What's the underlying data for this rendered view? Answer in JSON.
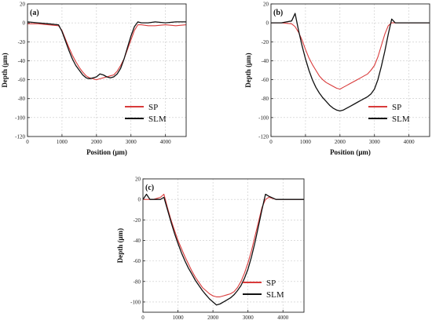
{
  "chart_data": [
    {
      "type": "line",
      "panel_label": "(a)",
      "xlabel": "Position (μm)",
      "ylabel": "Depth (μm)",
      "xlim": [
        0,
        4600
      ],
      "ylim": [
        -120,
        20
      ],
      "xticks": [
        0,
        1000,
        2000,
        3000,
        4000
      ],
      "yticks": [
        -120,
        -100,
        -80,
        -60,
        -40,
        -20,
        0,
        20
      ],
      "grid": true,
      "legend_position": "bottom-right",
      "series": [
        {
          "name": "SP",
          "color": "#d93b3b",
          "x": [
            0,
            300,
            600,
            900,
            1000,
            1100,
            1200,
            1300,
            1400,
            1500,
            1600,
            1700,
            1800,
            1900,
            2000,
            2100,
            2200,
            2300,
            2400,
            2500,
            2600,
            2700,
            2800,
            2900,
            3000,
            3100,
            3200,
            3300,
            3500,
            3700,
            4000,
            4300,
            4600
          ],
          "y": [
            -1,
            -1,
            -2,
            -3,
            -8,
            -17,
            -26,
            -34,
            -41,
            -47,
            -52,
            -56,
            -58,
            -59,
            -60,
            -59,
            -58,
            -57,
            -56,
            -55,
            -51,
            -45,
            -38,
            -28,
            -18,
            -8,
            -2,
            -2,
            -3,
            -3,
            -2,
            -3,
            -2
          ]
        },
        {
          "name": "SLM",
          "color": "#111111",
          "x": [
            0,
            300,
            600,
            900,
            1000,
            1100,
            1200,
            1300,
            1400,
            1500,
            1600,
            1700,
            1800,
            1900,
            2000,
            2100,
            2200,
            2300,
            2400,
            2500,
            2600,
            2700,
            2800,
            2900,
            3000,
            3100,
            3200,
            3300,
            3500,
            3700,
            4000,
            4300,
            4600
          ],
          "y": [
            1,
            0,
            -1,
            -2,
            -9,
            -19,
            -29,
            -38,
            -45,
            -50,
            -55,
            -58,
            -59,
            -58,
            -57,
            -54,
            -55,
            -57,
            -58,
            -57,
            -54,
            -48,
            -38,
            -26,
            -14,
            -4,
            1,
            0,
            0,
            1,
            0,
            1,
            1
          ]
        }
      ]
    },
    {
      "type": "line",
      "panel_label": "(b)",
      "xlabel": "Position (μm)",
      "ylabel": "Depth (μm)",
      "xlim": [
        0,
        4600
      ],
      "ylim": [
        -120,
        20
      ],
      "xticks": [
        0,
        1000,
        2000,
        3000,
        4000
      ],
      "yticks": [
        -120,
        -100,
        -80,
        -60,
        -40,
        -20,
        0,
        20
      ],
      "grid": true,
      "legend_position": "bottom-right",
      "series": [
        {
          "name": "SP",
          "color": "#d93b3b",
          "x": [
            0,
            300,
            600,
            700,
            800,
            900,
            1000,
            1100,
            1200,
            1300,
            1400,
            1500,
            1600,
            1700,
            1800,
            1900,
            2000,
            2100,
            2200,
            2300,
            2400,
            2500,
            2600,
            2700,
            2800,
            2900,
            3000,
            3100,
            3200,
            3300,
            3400,
            3500,
            3800,
            4200,
            4600
          ],
          "y": [
            0,
            0,
            -1,
            -4,
            -10,
            -18,
            -28,
            -37,
            -44,
            -50,
            -56,
            -60,
            -63,
            -65,
            -67,
            -69,
            -70,
            -68,
            -66,
            -64,
            -62,
            -60,
            -58,
            -56,
            -54,
            -50,
            -45,
            -36,
            -24,
            -12,
            -3,
            0,
            0,
            0,
            0
          ]
        },
        {
          "name": "SLM",
          "color": "#111111",
          "x": [
            0,
            300,
            600,
            700,
            800,
            900,
            1000,
            1100,
            1200,
            1300,
            1400,
            1500,
            1600,
            1700,
            1800,
            1900,
            2000,
            2100,
            2200,
            2300,
            2400,
            2500,
            2600,
            2700,
            2800,
            2900,
            3000,
            3100,
            3200,
            3300,
            3400,
            3500,
            3600,
            3800,
            4200,
            4600
          ],
          "y": [
            0,
            0,
            2,
            10,
            -8,
            -24,
            -38,
            -50,
            -60,
            -68,
            -74,
            -79,
            -83,
            -87,
            -90,
            -92,
            -93,
            -92,
            -90,
            -88,
            -86,
            -84,
            -82,
            -80,
            -78,
            -75,
            -70,
            -60,
            -46,
            -30,
            -12,
            4,
            0,
            0,
            0,
            0
          ]
        }
      ]
    },
    {
      "type": "line",
      "panel_label": "(c)",
      "xlabel": "",
      "ylabel": "Depth (μm)",
      "xlim": [
        0,
        4600
      ],
      "ylim": [
        -110,
        20
      ],
      "xticks": [
        0,
        1000,
        2000,
        3000,
        4000
      ],
      "yticks": [
        -100,
        -80,
        -60,
        -40,
        -20,
        0,
        20
      ],
      "grid": true,
      "legend_position": "bottom-right",
      "series": [
        {
          "name": "SP",
          "color": "#d93b3b",
          "x": [
            0,
            300,
            500,
            600,
            700,
            800,
            900,
            1000,
            1100,
            1200,
            1300,
            1400,
            1500,
            1600,
            1700,
            1800,
            1900,
            2000,
            2100,
            2200,
            2300,
            2400,
            2500,
            2600,
            2700,
            2800,
            2900,
            3000,
            3100,
            3200,
            3300,
            3400,
            3500,
            3600,
            3800,
            4200,
            4600
          ],
          "y": [
            0,
            0,
            2,
            5,
            -8,
            -20,
            -30,
            -40,
            -48,
            -56,
            -63,
            -70,
            -76,
            -81,
            -86,
            -89,
            -92,
            -94,
            -95,
            -95,
            -94,
            -93,
            -92,
            -90,
            -86,
            -80,
            -72,
            -62,
            -50,
            -36,
            -22,
            -8,
            0,
            2,
            0,
            0,
            0
          ]
        },
        {
          "name": "SLM",
          "color": "#111111",
          "x": [
            0,
            100,
            200,
            300,
            500,
            600,
            700,
            800,
            900,
            1000,
            1100,
            1200,
            1300,
            1400,
            1500,
            1600,
            1700,
            1800,
            1900,
            2000,
            2100,
            2200,
            2300,
            2400,
            2500,
            2600,
            2700,
            2800,
            2900,
            3000,
            3100,
            3200,
            3300,
            3400,
            3500,
            3600,
            3800,
            4200,
            4600
          ],
          "y": [
            0,
            5,
            0,
            0,
            0,
            2,
            -10,
            -22,
            -33,
            -43,
            -52,
            -60,
            -67,
            -73,
            -79,
            -84,
            -89,
            -93,
            -97,
            -100,
            -103,
            -102,
            -100,
            -98,
            -96,
            -93,
            -89,
            -84,
            -77,
            -68,
            -56,
            -42,
            -26,
            -10,
            5,
            3,
            0,
            0,
            0
          ]
        }
      ]
    }
  ]
}
